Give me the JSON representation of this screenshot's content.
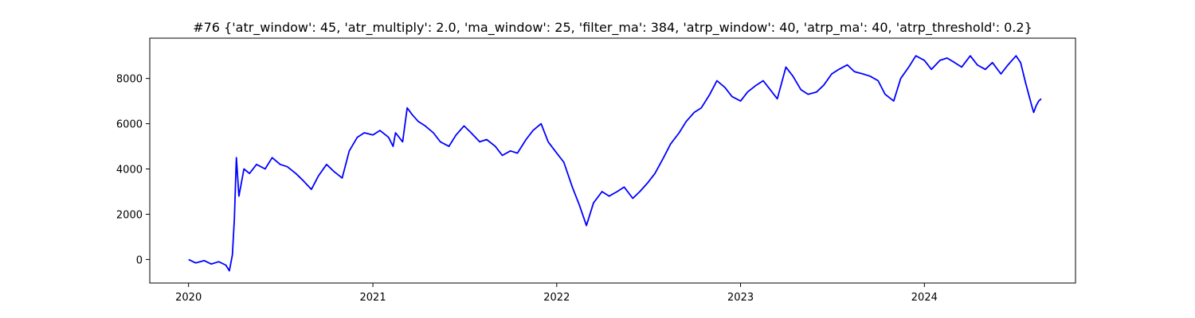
{
  "chart_data": {
    "type": "line",
    "title": "#76 {'atr_window': 45, 'atr_multiply': 2.0, 'ma_window': 25, 'filter_ma': 384, 'atrp_window': 40, 'atrp_ma': 40, 'atrp_threshold': 0.2}",
    "xlabel": "",
    "ylabel": "",
    "xlim": [
      "2019-10-16",
      "2024-10-27"
    ],
    "ylim": [
      -1040,
      9780
    ],
    "grid": false,
    "line_color": "#0000ff",
    "x_ticks": [
      {
        "label": "2020",
        "value": "2020-01-01"
      },
      {
        "label": "2021",
        "value": "2021-01-01"
      },
      {
        "label": "2022",
        "value": "2022-01-01"
      },
      {
        "label": "2023",
        "value": "2023-01-01"
      },
      {
        "label": "2024",
        "value": "2024-01-01"
      }
    ],
    "y_ticks": [
      {
        "label": "0",
        "value": 0
      },
      {
        "label": "2000",
        "value": 2000
      },
      {
        "label": "4000",
        "value": 4000
      },
      {
        "label": "6000",
        "value": 6000
      },
      {
        "label": "8000",
        "value": 8000
      }
    ],
    "series": [
      {
        "x": [
          "2020-01-01",
          "2020-01-15",
          "2020-02-01",
          "2020-02-15",
          "2020-03-01",
          "2020-03-15",
          "2020-03-22",
          "2020-03-28",
          "2020-04-01",
          "2020-04-05",
          "2020-04-10",
          "2020-04-20",
          "2020-05-01",
          "2020-05-15",
          "2020-06-01",
          "2020-06-15",
          "2020-07-01",
          "2020-07-15",
          "2020-08-01",
          "2020-08-15",
          "2020-09-01",
          "2020-09-15",
          "2020-10-01",
          "2020-10-15",
          "2020-11-01",
          "2020-11-15",
          "2020-12-01",
          "2020-12-15",
          "2021-01-01",
          "2021-01-15",
          "2021-02-01",
          "2021-02-10",
          "2021-02-15",
          "2021-03-01",
          "2021-03-10",
          "2021-03-20",
          "2021-04-01",
          "2021-04-15",
          "2021-05-01",
          "2021-05-15",
          "2021-06-01",
          "2021-06-15",
          "2021-07-01",
          "2021-07-15",
          "2021-08-01",
          "2021-08-15",
          "2021-09-01",
          "2021-09-15",
          "2021-10-01",
          "2021-10-15",
          "2021-11-01",
          "2021-11-15",
          "2021-12-01",
          "2021-12-15",
          "2022-01-01",
          "2022-01-15",
          "2022-02-01",
          "2022-02-15",
          "2022-03-01",
          "2022-03-15",
          "2022-04-01",
          "2022-04-15",
          "2022-05-01",
          "2022-05-15",
          "2022-06-01",
          "2022-06-15",
          "2022-07-01",
          "2022-07-15",
          "2022-08-01",
          "2022-08-15",
          "2022-09-01",
          "2022-09-15",
          "2022-10-01",
          "2022-10-15",
          "2022-11-01",
          "2022-11-15",
          "2022-12-01",
          "2022-12-15",
          "2023-01-01",
          "2023-01-15",
          "2023-02-01",
          "2023-02-15",
          "2023-03-01",
          "2023-03-15",
          "2023-04-01",
          "2023-04-15",
          "2023-05-01",
          "2023-05-15",
          "2023-06-01",
          "2023-06-15",
          "2023-07-01",
          "2023-07-15",
          "2023-08-01",
          "2023-08-15",
          "2023-09-01",
          "2023-09-15",
          "2023-10-01",
          "2023-10-15",
          "2023-11-01",
          "2023-11-15",
          "2023-12-01",
          "2023-12-15",
          "2024-01-01",
          "2024-01-15",
          "2024-02-01",
          "2024-02-15",
          "2024-03-01",
          "2024-03-15",
          "2024-04-01",
          "2024-04-15",
          "2024-05-01",
          "2024-05-15",
          "2024-06-01",
          "2024-06-15",
          "2024-07-01",
          "2024-07-10",
          "2024-07-20",
          "2024-08-01",
          "2024-08-05",
          "2024-08-10",
          "2024-08-15",
          "2024-08-20"
        ],
        "values": [
          0,
          -150,
          -50,
          -200,
          -100,
          -250,
          -500,
          200,
          1800,
          4500,
          2800,
          4000,
          3800,
          4200,
          4000,
          4500,
          4200,
          4100,
          3800,
          3500,
          3100,
          3700,
          4200,
          3900,
          3600,
          4800,
          5400,
          5600,
          5500,
          5700,
          5400,
          5000,
          5600,
          5200,
          6700,
          6400,
          6100,
          5900,
          5600,
          5200,
          5000,
          5500,
          5900,
          5600,
          5200,
          5300,
          5000,
          4600,
          4800,
          4700,
          5300,
          5700,
          6000,
          5200,
          4700,
          4300,
          3200,
          2400,
          1500,
          2500,
          3000,
          2800,
          3000,
          3200,
          2700,
          3000,
          3400,
          3800,
          4500,
          5100,
          5600,
          6100,
          6500,
          6700,
          7300,
          7900,
          7600,
          7200,
          7000,
          7400,
          7700,
          7900,
          7500,
          7100,
          8500,
          8100,
          7500,
          7300,
          7400,
          7700,
          8200,
          8400,
          8600,
          8300,
          8200,
          8100,
          7900,
          7300,
          7000,
          8000,
          8500,
          9000,
          8800,
          8400,
          8800,
          8900,
          8700,
          8500,
          9000,
          8600,
          8400,
          8700,
          8200,
          8600,
          9000,
          8700,
          7800,
          6800,
          6500,
          6800,
          7000,
          7100
        ]
      }
    ]
  }
}
